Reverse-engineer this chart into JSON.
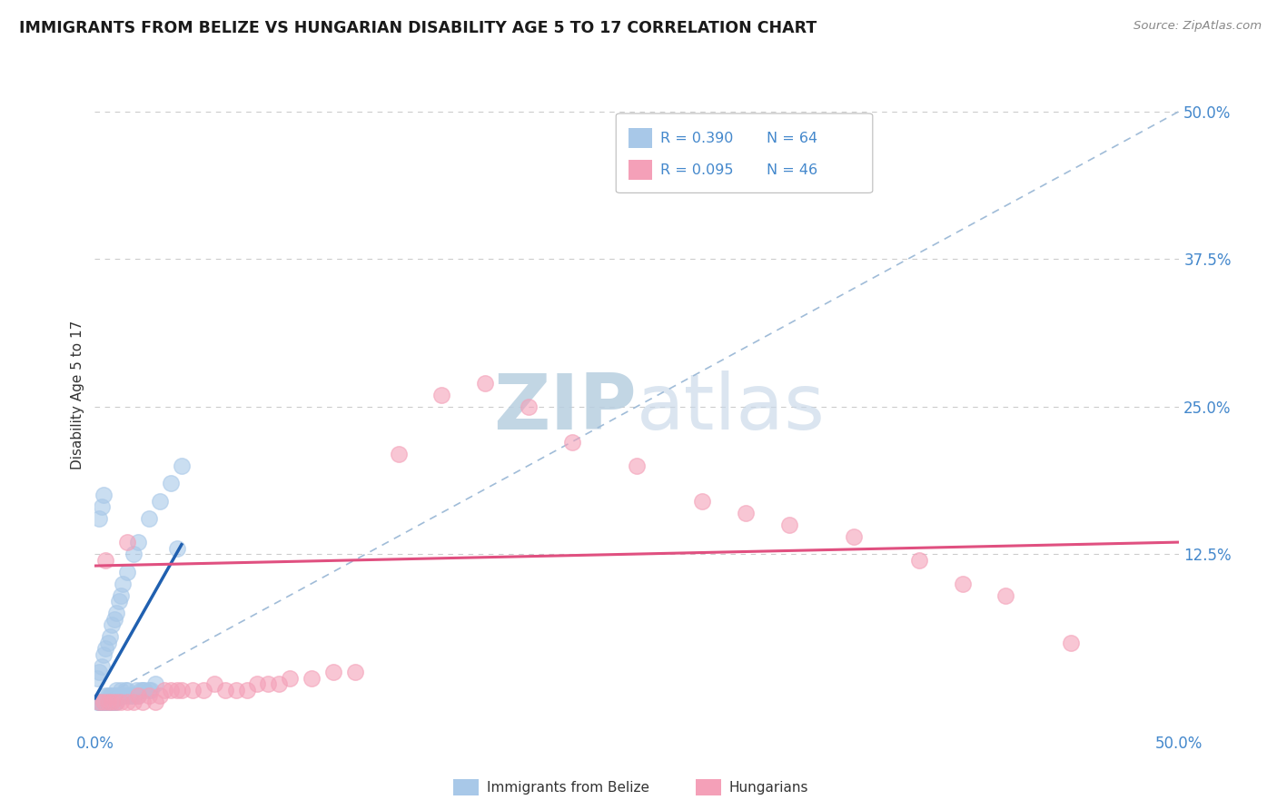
{
  "title": "IMMIGRANTS FROM BELIZE VS HUNGARIAN DISABILITY AGE 5 TO 17 CORRELATION CHART",
  "source": "Source: ZipAtlas.com",
  "ylabel": "Disability Age 5 to 17",
  "xlim": [
    0.0,
    0.5
  ],
  "ylim": [
    -0.025,
    0.545
  ],
  "xtick_positions": [
    0.0,
    0.5
  ],
  "xtick_labels": [
    "0.0%",
    "50.0%"
  ],
  "ytick_positions": [
    0.125,
    0.25,
    0.375,
    0.5
  ],
  "ytick_labels": [
    "12.5%",
    "25.0%",
    "37.5%",
    "50.0%"
  ],
  "grid_color": "#cccccc",
  "background_color": "#ffffff",
  "blue_color": "#a8c8e8",
  "pink_color": "#f4a0b8",
  "blue_line_color": "#2060b0",
  "pink_line_color": "#e05080",
  "diag_color": "#a0bcd8",
  "tick_color": "#4488cc",
  "watermark_color": "#c8d8e8",
  "blue_scatter_x": [
    0.001,
    0.002,
    0.002,
    0.003,
    0.003,
    0.003,
    0.004,
    0.004,
    0.005,
    0.005,
    0.005,
    0.006,
    0.006,
    0.007,
    0.007,
    0.008,
    0.008,
    0.009,
    0.009,
    0.01,
    0.01,
    0.01,
    0.011,
    0.012,
    0.012,
    0.013,
    0.014,
    0.015,
    0.015,
    0.016,
    0.017,
    0.018,
    0.019,
    0.02,
    0.021,
    0.022,
    0.023,
    0.025,
    0.026,
    0.028,
    0.001,
    0.002,
    0.003,
    0.004,
    0.005,
    0.006,
    0.007,
    0.008,
    0.009,
    0.01,
    0.011,
    0.012,
    0.013,
    0.015,
    0.018,
    0.02,
    0.025,
    0.03,
    0.035,
    0.04,
    0.002,
    0.003,
    0.004,
    0.038
  ],
  "blue_scatter_y": [
    0.0,
    0.0,
    0.0,
    0.0,
    0.0,
    0.0,
    0.0,
    0.0,
    0.0,
    0.0,
    0.005,
    0.0,
    0.005,
    0.0,
    0.005,
    0.0,
    0.005,
    0.0,
    0.005,
    0.0,
    0.005,
    0.01,
    0.005,
    0.005,
    0.01,
    0.005,
    0.01,
    0.005,
    0.01,
    0.005,
    0.005,
    0.005,
    0.01,
    0.005,
    0.01,
    0.01,
    0.01,
    0.01,
    0.01,
    0.015,
    0.02,
    0.025,
    0.03,
    0.04,
    0.045,
    0.05,
    0.055,
    0.065,
    0.07,
    0.075,
    0.085,
    0.09,
    0.1,
    0.11,
    0.125,
    0.135,
    0.155,
    0.17,
    0.185,
    0.2,
    0.155,
    0.165,
    0.175,
    0.13
  ],
  "pink_scatter_x": [
    0.002,
    0.004,
    0.006,
    0.008,
    0.01,
    0.012,
    0.015,
    0.018,
    0.02,
    0.022,
    0.025,
    0.028,
    0.03,
    0.032,
    0.035,
    0.038,
    0.04,
    0.045,
    0.05,
    0.055,
    0.06,
    0.065,
    0.07,
    0.075,
    0.08,
    0.085,
    0.09,
    0.1,
    0.11,
    0.12,
    0.14,
    0.16,
    0.18,
    0.2,
    0.22,
    0.25,
    0.28,
    0.3,
    0.32,
    0.35,
    0.38,
    0.4,
    0.42,
    0.45,
    0.005,
    0.015
  ],
  "pink_scatter_y": [
    0.0,
    0.0,
    0.0,
    0.0,
    0.0,
    0.0,
    0.0,
    0.0,
    0.005,
    0.0,
    0.005,
    0.0,
    0.005,
    0.01,
    0.01,
    0.01,
    0.01,
    0.01,
    0.01,
    0.015,
    0.01,
    0.01,
    0.01,
    0.015,
    0.015,
    0.015,
    0.02,
    0.02,
    0.025,
    0.025,
    0.21,
    0.26,
    0.27,
    0.25,
    0.22,
    0.2,
    0.17,
    0.16,
    0.15,
    0.14,
    0.12,
    0.1,
    0.09,
    0.05,
    0.12,
    0.135
  ],
  "blue_line": [
    [
      0.0,
      0.003
    ],
    [
      0.04,
      0.133
    ]
  ],
  "pink_line": [
    [
      0.0,
      0.115
    ],
    [
      0.5,
      0.135
    ]
  ],
  "diag_line": [
    [
      0.0,
      0.0
    ],
    [
      0.5,
      0.5
    ]
  ]
}
